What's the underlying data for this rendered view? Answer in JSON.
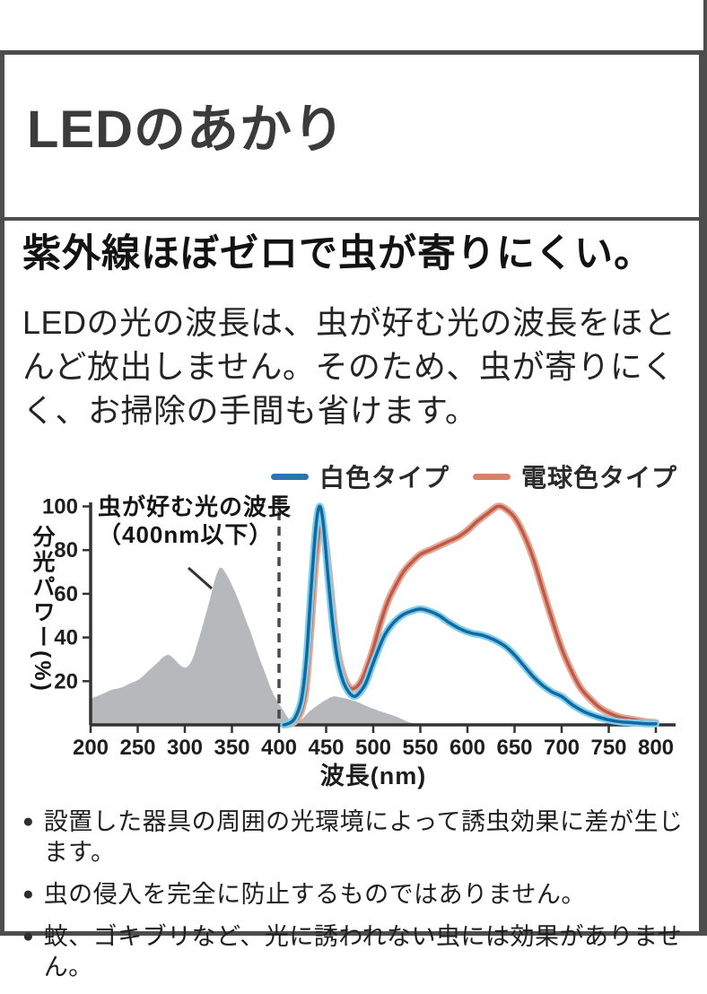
{
  "header": {
    "title": "LEDのあかり"
  },
  "section": {
    "headline": "紫外線ほぼゼロで虫が寄りにくい。",
    "body": "LEDの光の波長は、虫が好む光の波長をほとんど放出しません。そのため、虫が寄りにくく、お掃除の手間も省けます。"
  },
  "chart_data": {
    "type": "line",
    "xlabel": "波長(nm)",
    "ylabel": "分光パワー(%)",
    "xlim": [
      200,
      800
    ],
    "ylim": [
      0,
      100
    ],
    "x_ticks": [
      200,
      250,
      300,
      350,
      400,
      450,
      500,
      550,
      600,
      650,
      700,
      750,
      800
    ],
    "y_ticks": [
      20,
      40,
      60,
      80,
      100
    ],
    "grid": false,
    "legend_position": "top-right",
    "threshold_line_nm": 400,
    "annotation": {
      "line1": "虫が好む光の波長",
      "line2": "（400nm以下）"
    },
    "colors": {
      "axis": "#333333",
      "dashed_line": "#4a4a4a",
      "insect_area_fill": "#b7b8bc",
      "white_type_core": "#14689f",
      "white_type_halo": "#7dd0ec",
      "bulb_type_core": "#c05a48",
      "bulb_type_halo": "#e5a896"
    },
    "legend": [
      {
        "name": "白色タイプ",
        "color": "#2b76ae"
      },
      {
        "name": "電球色タイプ",
        "color": "#d9826a"
      }
    ],
    "series": [
      {
        "name": "虫が好む光の波長（グレー領域）",
        "style": "area",
        "points": [
          [
            200,
            12
          ],
          [
            212,
            14
          ],
          [
            222,
            16
          ],
          [
            232,
            17
          ],
          [
            242,
            19
          ],
          [
            252,
            21
          ],
          [
            262,
            25
          ],
          [
            270,
            28
          ],
          [
            277,
            31
          ],
          [
            283,
            32
          ],
          [
            289,
            30
          ],
          [
            296,
            27
          ],
          [
            302,
            26.5
          ],
          [
            308,
            30
          ],
          [
            314,
            38
          ],
          [
            320,
            47
          ],
          [
            327,
            58
          ],
          [
            333,
            68
          ],
          [
            338,
            72
          ],
          [
            344,
            69
          ],
          [
            350,
            64
          ],
          [
            357,
            57
          ],
          [
            364,
            49
          ],
          [
            371,
            41
          ],
          [
            378,
            32
          ],
          [
            385,
            24
          ],
          [
            392,
            16
          ],
          [
            398,
            11
          ],
          [
            404,
            7
          ],
          [
            410,
            3
          ],
          [
            416,
            1
          ],
          [
            424,
            2.5
          ],
          [
            432,
            6
          ],
          [
            441,
            9
          ],
          [
            450,
            11.5
          ],
          [
            458,
            13
          ],
          [
            466,
            12.5
          ],
          [
            476,
            11.5
          ],
          [
            486,
            10
          ],
          [
            496,
            8
          ],
          [
            506,
            6.5
          ],
          [
            516,
            5
          ],
          [
            526,
            3.5
          ],
          [
            536,
            1.5
          ],
          [
            546,
            0.3
          ]
        ]
      },
      {
        "name": "電球色タイプ",
        "style": "line",
        "points": [
          [
            405,
            0
          ],
          [
            412,
            0.5
          ],
          [
            418,
            2
          ],
          [
            424,
            7
          ],
          [
            429,
            18
          ],
          [
            434,
            45
          ],
          [
            439,
            75
          ],
          [
            444,
            92
          ],
          [
            448,
            88
          ],
          [
            453,
            70
          ],
          [
            458,
            48
          ],
          [
            463,
            32
          ],
          [
            469,
            22
          ],
          [
            475,
            17
          ],
          [
            481,
            17
          ],
          [
            487,
            20
          ],
          [
            493,
            26
          ],
          [
            500,
            35
          ],
          [
            508,
            47
          ],
          [
            516,
            57
          ],
          [
            524,
            64
          ],
          [
            532,
            70
          ],
          [
            540,
            74
          ],
          [
            550,
            78
          ],
          [
            560,
            80
          ],
          [
            570,
            82
          ],
          [
            580,
            84
          ],
          [
            590,
            86
          ],
          [
            600,
            89
          ],
          [
            610,
            93
          ],
          [
            622,
            97
          ],
          [
            632,
            100
          ],
          [
            640,
            99
          ],
          [
            650,
            95
          ],
          [
            660,
            87
          ],
          [
            670,
            76
          ],
          [
            680,
            62
          ],
          [
            690,
            48
          ],
          [
            700,
            35
          ],
          [
            710,
            25
          ],
          [
            720,
            17
          ],
          [
            730,
            12
          ],
          [
            740,
            8
          ],
          [
            750,
            5.5
          ],
          [
            762,
            3.5
          ],
          [
            775,
            2.5
          ],
          [
            788,
            1.5
          ],
          [
            800,
            1
          ]
        ]
      },
      {
        "name": "白色タイプ",
        "style": "line",
        "points": [
          [
            405,
            0
          ],
          [
            412,
            1
          ],
          [
            418,
            4
          ],
          [
            424,
            12
          ],
          [
            429,
            30
          ],
          [
            434,
            62
          ],
          [
            439,
            90
          ],
          [
            443,
            100
          ],
          [
            447,
            92
          ],
          [
            452,
            68
          ],
          [
            457,
            46
          ],
          [
            462,
            30
          ],
          [
            468,
            20
          ],
          [
            474,
            15
          ],
          [
            480,
            13
          ],
          [
            486,
            15
          ],
          [
            492,
            19
          ],
          [
            498,
            26
          ],
          [
            505,
            34
          ],
          [
            512,
            41
          ],
          [
            520,
            46
          ],
          [
            530,
            50
          ],
          [
            540,
            52
          ],
          [
            550,
            53
          ],
          [
            560,
            52
          ],
          [
            570,
            50
          ],
          [
            580,
            47
          ],
          [
            592,
            44
          ],
          [
            604,
            42
          ],
          [
            616,
            41
          ],
          [
            628,
            39
          ],
          [
            640,
            36
          ],
          [
            650,
            32
          ],
          [
            660,
            27
          ],
          [
            670,
            22
          ],
          [
            680,
            18
          ],
          [
            690,
            15
          ],
          [
            700,
            13
          ],
          [
            712,
            9
          ],
          [
            724,
            6
          ],
          [
            736,
            4
          ],
          [
            748,
            2.5
          ],
          [
            760,
            1.5
          ],
          [
            775,
            1
          ],
          [
            790,
            0.5
          ],
          [
            800,
            0.5
          ]
        ]
      }
    ]
  },
  "notes": [
    "設置した器具の周囲の光環境によって誘虫効果に差が生じます。",
    "虫の侵入を完全に防止するものではありません。",
    "蚊、ゴキブリなど、光に誘われない虫には効果がありません。"
  ]
}
